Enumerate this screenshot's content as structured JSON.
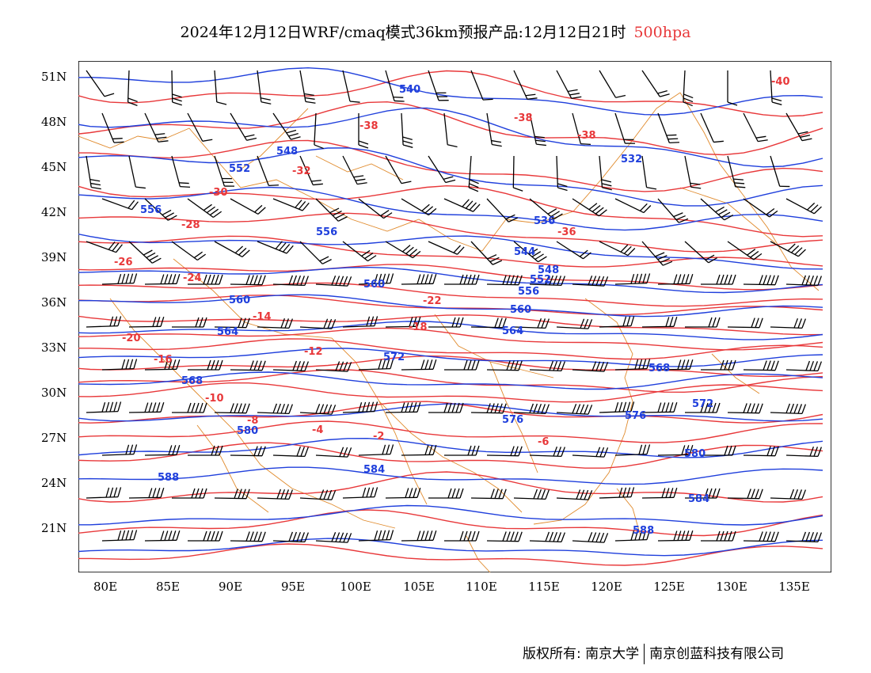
{
  "title": {
    "main": "2024年12月12日WRF/cmaq模式36km预报产品:12月12日21时",
    "level": "500hpa"
  },
  "colors": {
    "height_contour": "#1f3fdc",
    "temperature_contour": "#e8383a",
    "coastline_border": "#e08a2c",
    "wind_barb": "#000000",
    "level_text": "#e8383a"
  },
  "axes": {
    "lat_labels": [
      "51N",
      "48N",
      "45N",
      "42N",
      "39N",
      "36N",
      "33N",
      "30N",
      "27N",
      "24N",
      "21N"
    ],
    "lon_labels": [
      "80E",
      "85E",
      "90E",
      "95E",
      "100E",
      "105E",
      "110E",
      "115E",
      "120E",
      "125E",
      "130E",
      "135E"
    ],
    "lon_range": [
      78,
      138
    ],
    "lat_range": [
      18,
      52
    ]
  },
  "height_labels": [
    "540",
    "548",
    "552",
    "556",
    "556",
    "560",
    "560",
    "564",
    "568",
    "572",
    "576",
    "580",
    "584",
    "588",
    "532",
    "536",
    "544",
    "548",
    "552",
    "556",
    "560",
    "564",
    "568",
    "572",
    "576",
    "580",
    "584",
    "588"
  ],
  "temperature_labels": [
    "-40",
    "-38",
    "-38",
    "-38",
    "-36",
    "-32",
    "-30",
    "-28",
    "-26",
    "-24",
    "-22",
    "-20",
    "-18",
    "-16",
    "-14",
    "-12",
    "-10",
    "-8",
    "-6",
    "-4",
    "-2"
  ],
  "footer": {
    "rights": "版权所有: 南京大学",
    "company": "南京创蓝科技有限公司"
  }
}
